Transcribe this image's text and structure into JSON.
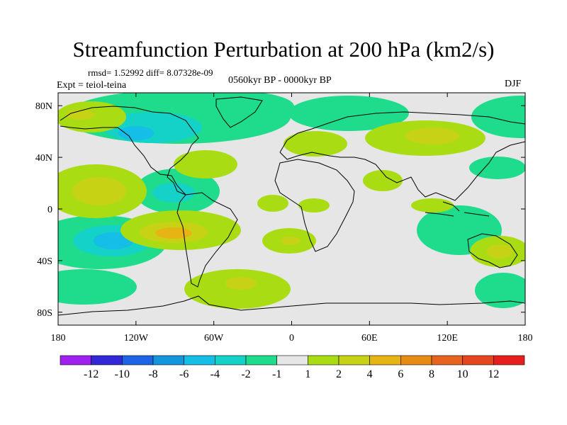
{
  "title": "Streamfunction Perturbation at 200 hPa (km2/s)",
  "stats": "rmsd= 1.52992 diff= 8.07328e-09",
  "experiment": "Expt = teiol-teina",
  "period": "0560kyr BP - 0000kyr BP",
  "season": "DJF",
  "map": {
    "projection": "cylindrical equidistant",
    "lon_range": [
      -180,
      180
    ],
    "lat_range": [
      -90,
      90
    ],
    "x_ticks": [
      {
        "value": -180,
        "label": "180"
      },
      {
        "value": -120,
        "label": "120W"
      },
      {
        "value": -60,
        "label": "60W"
      },
      {
        "value": 0,
        "label": "0"
      },
      {
        "value": 60,
        "label": "60E"
      },
      {
        "value": 120,
        "label": "120E"
      },
      {
        "value": 180,
        "label": "180"
      }
    ],
    "y_ticks": [
      {
        "value": 80,
        "label": "80N"
      },
      {
        "value": 40,
        "label": "40N"
      },
      {
        "value": 0,
        "label": "0"
      },
      {
        "value": -40,
        "label": "40S"
      },
      {
        "value": -80,
        "label": "80S"
      }
    ],
    "background_color": "#e6e6e6"
  },
  "colorbar": {
    "labels": [
      "-12",
      "-10",
      "-8",
      "-6",
      "-4",
      "-2",
      "-1",
      "1",
      "2",
      "4",
      "6",
      "8",
      "10",
      "12"
    ],
    "colors": [
      "#a020f0",
      "#3228d8",
      "#1e64e6",
      "#1496dc",
      "#14bee6",
      "#14d2c8",
      "#1edc8c",
      "#e6e6e6",
      "#aadc14",
      "#c8d214",
      "#e6b414",
      "#e68c14",
      "#e6641e",
      "#e6461e",
      "#e61e1e"
    ]
  }
}
